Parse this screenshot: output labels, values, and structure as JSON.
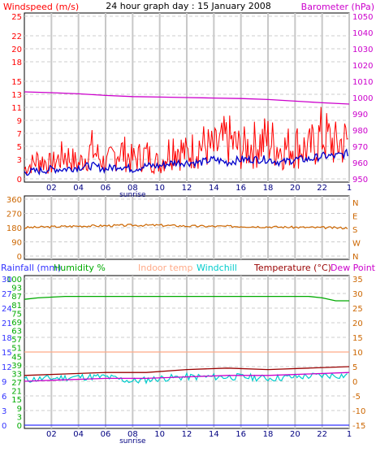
{
  "header": {
    "windspeed_label": "Windspeed (m/s)",
    "title": "24 hour graph day : 15 January 2008",
    "barometer_label": "Barometer (hPa)"
  },
  "x_axis": {
    "ticks": [
      "02",
      "04",
      "06",
      "08",
      "10",
      "12",
      "14",
      "16",
      "18",
      "20",
      "22",
      "1"
    ],
    "sunrise_label": "sunrise"
  },
  "panel_bottom_legend": {
    "rainfall": "Rainfall (mm)",
    "humidity": "Humidity %",
    "indoor": "Indoor temp",
    "windchill": "Windchill",
    "temperature": "Temperature (°C)",
    "dewpoint": "Dew Point"
  },
  "colors": {
    "windspeed_gust": "#ff0000",
    "windspeed_avg": "#0000cc",
    "barometer": "#cc00cc",
    "wind_direction": "#cc6600",
    "rainfall": "#3333ff",
    "humidity": "#00aa00",
    "indoor": "#ffaa88",
    "windchill": "#00cccc",
    "temperature": "#990000",
    "dewpoint": "#cc00cc",
    "frame": "#000000",
    "grid": "#cccccc",
    "vgrid": "#c8c8c8"
  },
  "chart_data": [
    {
      "type": "line",
      "panel": "top",
      "x_range_hours": [
        0,
        24
      ],
      "y_left": {
        "label": "Windspeed (m/s)",
        "ticks": [
          "0",
          "3",
          "5",
          "7",
          "9",
          "11",
          "13",
          "15",
          "18",
          "20",
          "22",
          "25"
        ],
        "ylim": [
          0,
          25
        ]
      },
      "y_right": {
        "label": "Barometer (hPa)",
        "ticks": [
          "950",
          "960",
          "970",
          "980",
          "990",
          "1000",
          "1010",
          "1020",
          "1030",
          "1040",
          "1050"
        ],
        "ylim": [
          950,
          1050
        ]
      },
      "series": [
        {
          "name": "Barometer (hPa)",
          "axis": "right",
          "x": [
            0,
            2,
            4,
            6,
            8,
            10,
            12,
            14,
            16,
            18,
            20,
            22,
            24
          ],
          "y": [
            1003.5,
            1003.0,
            1002.3,
            1001.3,
            1000.6,
            1000.3,
            1000.0,
            999.7,
            999.4,
            998.8,
            997.8,
            996.8,
            996.0
          ]
        },
        {
          "name": "Windspeed (m/s)",
          "axis": "left",
          "role": "gust",
          "x": [
            0,
            1,
            2,
            3,
            4,
            5,
            6,
            7,
            8,
            9,
            10,
            11,
            12,
            13,
            14,
            15,
            16,
            17,
            18,
            19,
            20,
            21,
            22,
            23,
            24
          ],
          "y": [
            2,
            4,
            3,
            5,
            3,
            6,
            3,
            6,
            4,
            5,
            3,
            7,
            5,
            7,
            6,
            8,
            6,
            7,
            8,
            6,
            7,
            6,
            9,
            7,
            8
          ]
        },
        {
          "name": "Windspeed (m/s)",
          "axis": "left",
          "role": "average",
          "x": [
            0,
            1,
            2,
            3,
            4,
            5,
            6,
            7,
            8,
            9,
            10,
            11,
            12,
            13,
            14,
            15,
            16,
            17,
            18,
            19,
            20,
            21,
            22,
            23,
            24
          ],
          "y": [
            1,
            1.2,
            1.5,
            1.5,
            1.8,
            2,
            1.5,
            2,
            1.5,
            2,
            2,
            2.5,
            2.5,
            2.5,
            3,
            2.5,
            3,
            3,
            3,
            2.5,
            3,
            3,
            3.5,
            3.5,
            4
          ]
        }
      ]
    },
    {
      "type": "line",
      "panel": "middle",
      "x_range_hours": [
        0,
        24
      ],
      "y_left": {
        "ticks": [
          "0",
          "90",
          "180",
          "270",
          "360"
        ],
        "ylim": [
          0,
          360
        ]
      },
      "y_right": {
        "ticks": [
          "N",
          "W",
          "S",
          "E",
          "N"
        ]
      },
      "series": [
        {
          "name": "Wind direction",
          "x": [
            0,
            2,
            4,
            6,
            8,
            10,
            12,
            14,
            16,
            18,
            20,
            22,
            24
          ],
          "y": [
            180,
            185,
            190,
            192,
            195,
            195,
            190,
            188,
            188,
            185,
            182,
            180,
            178
          ]
        }
      ]
    },
    {
      "type": "line",
      "panel": "bottom",
      "x_range_hours": [
        0,
        24
      ],
      "y_left": {
        "ticks": [
          "0",
          "3",
          "9",
          "15",
          "21",
          "27",
          "33",
          "39",
          "45",
          "51",
          "57",
          "63",
          "69",
          "75",
          "81",
          "87",
          "93",
          "100"
        ],
        "ylim": [
          0,
          100
        ]
      },
      "y_left_secondary": {
        "ticks": [
          "0",
          "3",
          "6",
          "9",
          "12",
          "15",
          "18",
          "21",
          "24",
          "27",
          "30"
        ],
        "ylim": [
          0,
          30
        ]
      },
      "y_right": {
        "ticks": [
          "-15",
          "-10",
          "-5",
          "0",
          "5",
          "10",
          "15",
          "20",
          "25",
          "30",
          "35"
        ],
        "ylim": [
          -15,
          35
        ]
      },
      "series": [
        {
          "name": "Humidity %",
          "axis": "left",
          "x": [
            0,
            1,
            3,
            6,
            10,
            14,
            18,
            21,
            22,
            23,
            24
          ],
          "y": [
            86,
            87,
            88,
            88,
            88,
            88,
            88,
            88,
            87,
            85,
            85
          ]
        },
        {
          "name": "Indoor temp",
          "axis": "right",
          "x": [
            0,
            24
          ],
          "y": [
            10,
            10
          ]
        },
        {
          "name": "Temperature (°C)",
          "axis": "right",
          "x": [
            0,
            3,
            6,
            9,
            12,
            15,
            18,
            21,
            24
          ],
          "y": [
            2,
            2.5,
            3,
            3,
            4,
            4.5,
            4,
            4.5,
            5
          ]
        },
        {
          "name": "Windchill",
          "axis": "right",
          "x": [
            0,
            2,
            4,
            6,
            8,
            10,
            12,
            14,
            16,
            18,
            20,
            22,
            24
          ],
          "y": [
            0.5,
            1,
            1.5,
            1.5,
            0,
            1,
            1.5,
            1.5,
            1.5,
            1,
            1.5,
            2,
            2
          ]
        },
        {
          "name": "Dew Point",
          "axis": "right",
          "x": [
            0,
            3,
            6,
            9,
            12,
            15,
            18,
            21,
            24
          ],
          "y": [
            0,
            0.5,
            1,
            1,
            1.5,
            2,
            2,
            2.5,
            3
          ]
        },
        {
          "name": "Rainfall (mm)",
          "axis": "left_secondary",
          "x": [
            0,
            24
          ],
          "y": [
            0,
            0
          ]
        }
      ]
    }
  ]
}
